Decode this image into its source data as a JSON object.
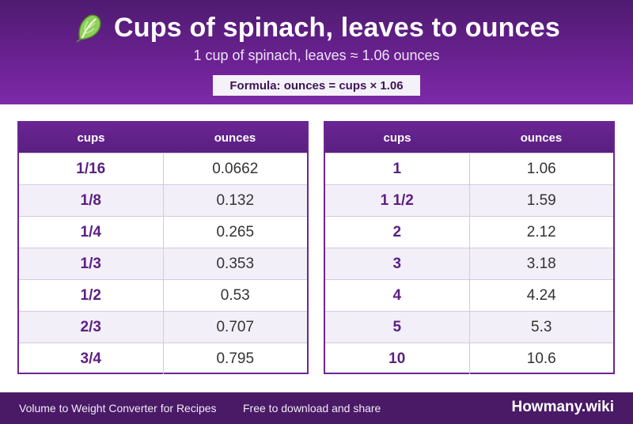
{
  "header": {
    "icon": "spinach-leaf-icon",
    "title": "Cups of spinach, leaves to ounces",
    "subtitle": "1 cup of spinach, leaves ≈ 1.06 ounces",
    "formula": "Formula: ounces = cups × 1.06"
  },
  "colors": {
    "header_dark": "#4e1b70",
    "header_light": "#7d2aa8",
    "accent_text": "#5b1f83",
    "row_alt": "#f3eff9",
    "footer_bg": "#4a1a66"
  },
  "tables": {
    "left": {
      "col_cups": "cups",
      "col_ounces": "ounces",
      "rows": [
        {
          "cups": "1/16",
          "ounces": "0.0662"
        },
        {
          "cups": "1/8",
          "ounces": "0.132"
        },
        {
          "cups": "1/4",
          "ounces": "0.265"
        },
        {
          "cups": "1/3",
          "ounces": "0.353"
        },
        {
          "cups": "1/2",
          "ounces": "0.53"
        },
        {
          "cups": "2/3",
          "ounces": "0.707"
        },
        {
          "cups": "3/4",
          "ounces": "0.795"
        }
      ]
    },
    "right": {
      "col_cups": "cups",
      "col_ounces": "ounces",
      "rows": [
        {
          "cups": "1",
          "ounces": "1.06"
        },
        {
          "cups": "1 1/2",
          "ounces": "1.59"
        },
        {
          "cups": "2",
          "ounces": "2.12"
        },
        {
          "cups": "3",
          "ounces": "3.18"
        },
        {
          "cups": "4",
          "ounces": "4.24"
        },
        {
          "cups": "5",
          "ounces": "5.3"
        },
        {
          "cups": "10",
          "ounces": "10.6"
        }
      ]
    }
  },
  "footer": {
    "left_text": "Volume to Weight Converter for Recipes",
    "mid_text": "Free to download and share",
    "brand": "Howmany.wiki"
  }
}
